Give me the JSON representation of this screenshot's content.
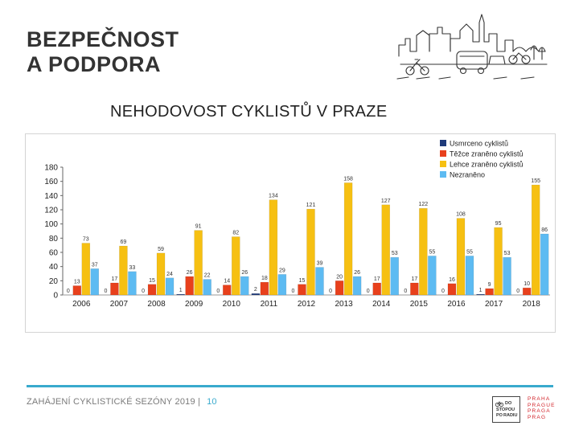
{
  "slide": {
    "title_line1": "BEZPEČNOST",
    "title_line2": "A PODPORA",
    "chart_heading": "NEHODOVOST CYKLISTŮ V PRAZE"
  },
  "footer": {
    "text": "ZAHÁJENÍ CYKLISTICKÉ SEZÓNY 2019 |",
    "page_number": "10",
    "logo_stopou_line1": "DO",
    "logo_stopou_line2": "STOPOU",
    "logo_stopou_line3": "PO",
    "logo_stopou_line4": "RADIU",
    "logo_praha_lines": [
      "PRAHA",
      "PRAGUE",
      "PRAGA",
      "PRAG"
    ]
  },
  "colors": {
    "dark": "#1f3a7a",
    "red": "#e8401c",
    "yellow": "#f6c012",
    "blue": "#5dbbf2",
    "accent": "#39aacd",
    "praha_red": "#d2232a"
  },
  "chart_data": {
    "type": "bar",
    "title": "NEHODOVOST CYKLISTŮ V PRAZE",
    "xlabel": "",
    "ylabel": "",
    "ylim": [
      0,
      180
    ],
    "yticks": [
      0,
      20,
      40,
      60,
      80,
      100,
      120,
      140,
      160,
      180
    ],
    "legend_position": "top-right",
    "categories": [
      "2006",
      "2007",
      "2008",
      "2009",
      "2010",
      "2011",
      "2012",
      "2013",
      "2014",
      "2015",
      "2016",
      "2017",
      "2018"
    ],
    "series": [
      {
        "name": "Usmrceno cyklistů",
        "color": "#1f3a7a",
        "values": [
          0,
          0,
          0,
          1,
          0,
          2,
          0,
          0,
          0,
          0,
          0,
          1,
          0
        ]
      },
      {
        "name": "Těžce zraněno cyklistů",
        "color": "#e8401c",
        "values": [
          13,
          17,
          15,
          26,
          14,
          18,
          15,
          20,
          17,
          17,
          16,
          9,
          10
        ]
      },
      {
        "name": "Lehce zraněno cyklistů",
        "color": "#f6c012",
        "values": [
          73,
          69,
          59,
          91,
          82,
          134,
          121,
          158,
          127,
          122,
          108,
          95,
          155
        ]
      },
      {
        "name": "Nezraněno",
        "color": "#5dbbf2",
        "values": [
          37,
          33,
          24,
          22,
          26,
          29,
          39,
          26,
          53,
          55,
          55,
          53,
          86
        ]
      }
    ]
  }
}
